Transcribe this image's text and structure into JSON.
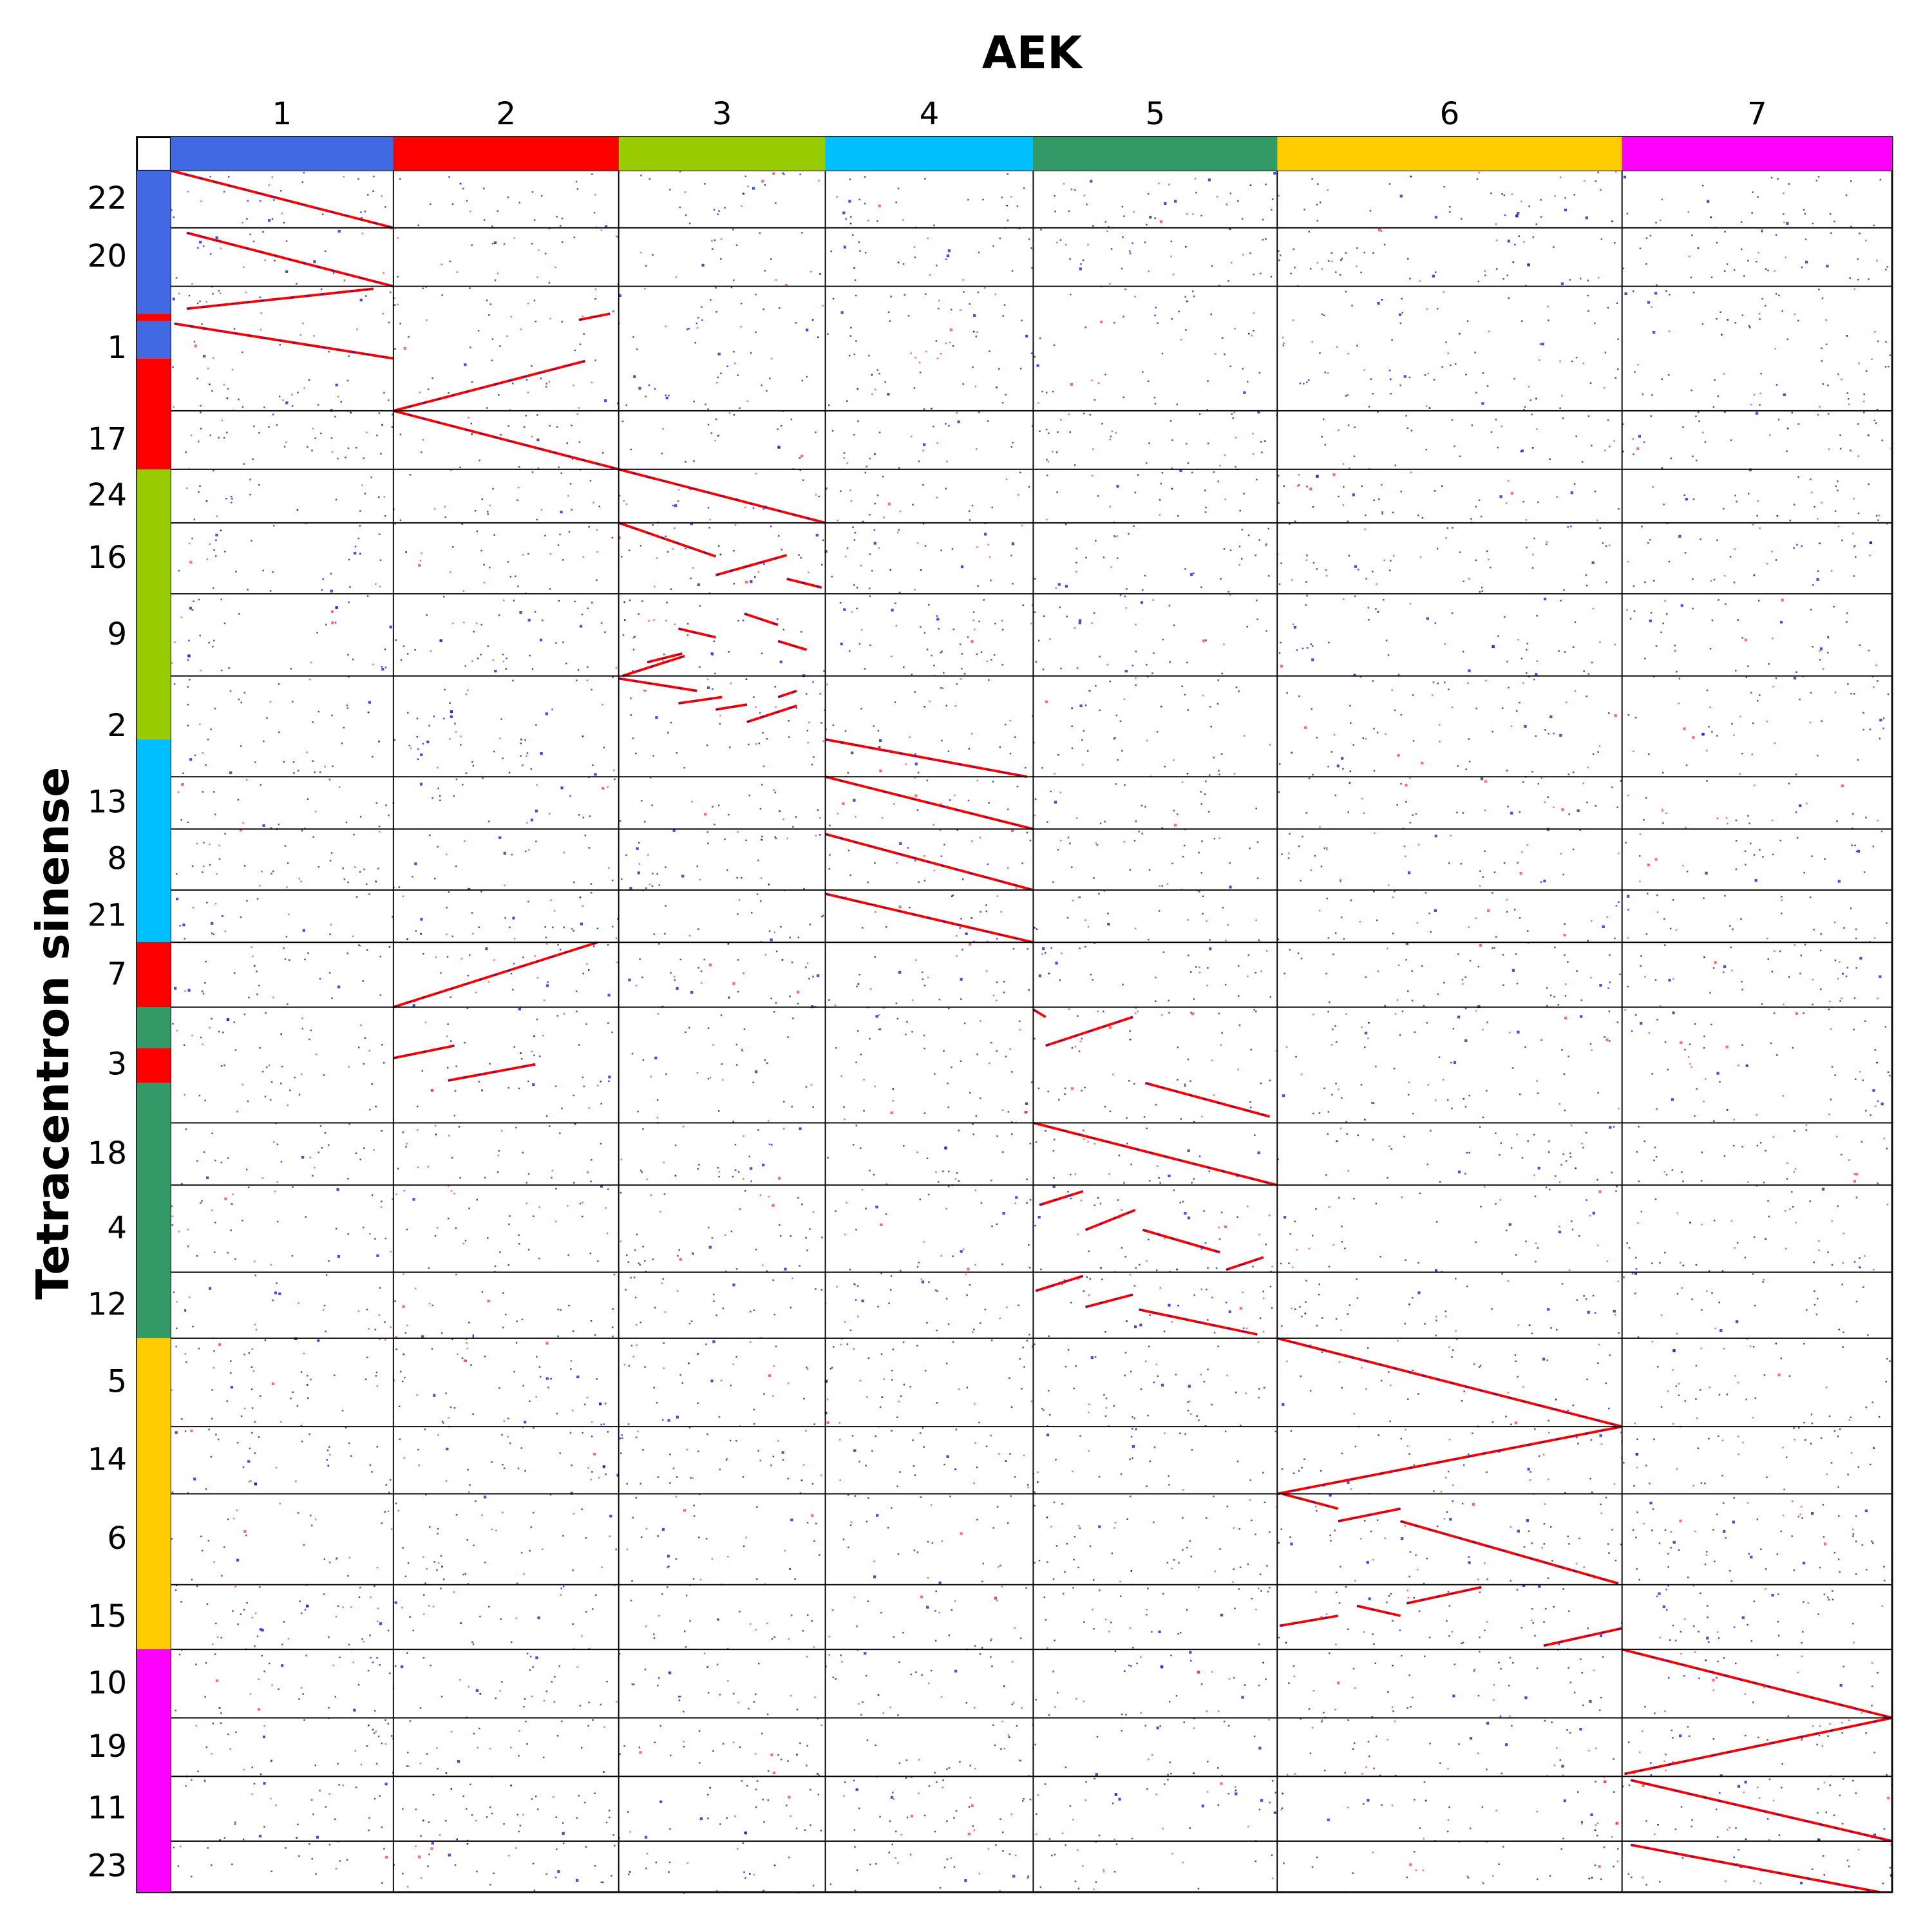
{
  "title": "AEK",
  "y_label": "Tetracentron sinense",
  "columns": [
    "1",
    "2",
    "3",
    "4",
    "5",
    "6",
    "7"
  ],
  "rows": [
    "22",
    "20",
    "1",
    "17",
    "24",
    "16",
    "9",
    "2",
    "13",
    "8",
    "21",
    "7",
    "3",
    "18",
    "4",
    "12",
    "5",
    "14",
    "6",
    "15",
    "10",
    "19",
    "11",
    "23"
  ]
}
